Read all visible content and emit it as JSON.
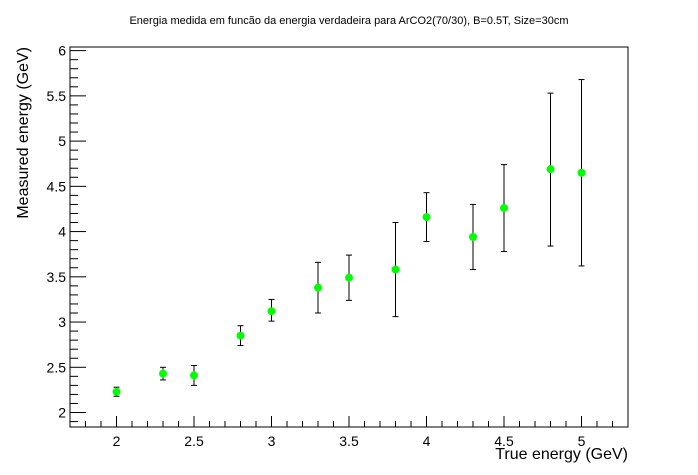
{
  "chart_data": {
    "type": "scatter",
    "title": "Energia medida em funcão da energia verdadeira para ArCO2(70/30), B=0.5T, Size=30cm",
    "xlabel": "True energy (GeV)",
    "ylabel": "Measured energy (GeV)",
    "xlim": [
      1.7,
      5.3
    ],
    "ylim": [
      1.84,
      6.04
    ],
    "x_ticks": [
      "2",
      "2.5",
      "3",
      "3.5",
      "4",
      "4.5",
      "5"
    ],
    "y_ticks": [
      "2",
      "2.5",
      "3",
      "3.5",
      "4",
      "4.5",
      "5",
      "5.5",
      "6"
    ],
    "grid": false,
    "marker_color": "#00ff00",
    "errorbar_color": "#000000",
    "series": [
      {
        "x": [
          2.0,
          2.3,
          2.5,
          2.8,
          3.0,
          3.3,
          3.5,
          3.8,
          4.0,
          4.3,
          4.5,
          4.8,
          5.0
        ],
        "y": [
          2.23,
          2.43,
          2.41,
          2.85,
          3.12,
          3.38,
          3.49,
          3.58,
          4.16,
          3.94,
          4.26,
          4.69,
          4.65
        ],
        "yerr_low": [
          0.05,
          0.07,
          0.11,
          0.11,
          0.11,
          0.28,
          0.25,
          0.52,
          0.27,
          0.36,
          0.48,
          0.85,
          1.03
        ],
        "yerr_high": [
          0.05,
          0.07,
          0.11,
          0.11,
          0.13,
          0.28,
          0.25,
          0.52,
          0.27,
          0.36,
          0.48,
          0.84,
          1.03
        ]
      }
    ]
  }
}
